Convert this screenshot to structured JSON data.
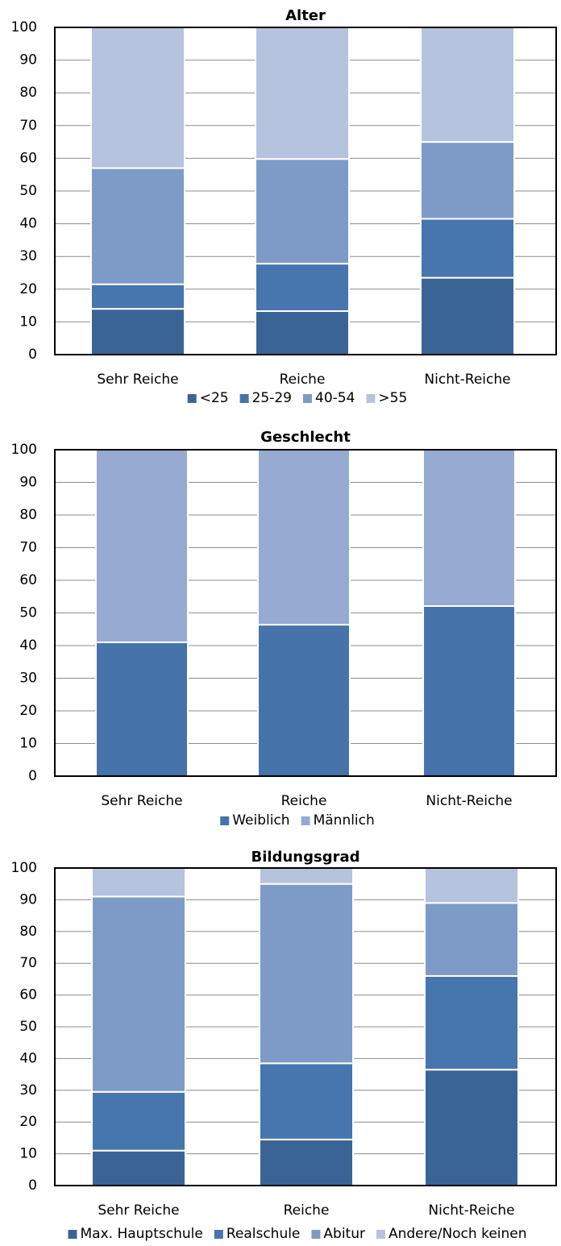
{
  "chart_data": [
    {
      "type": "bar",
      "stacked": true,
      "title": "Alter",
      "categories": [
        "Sehr Reiche",
        "Reiche",
        "Nicht-Reiche"
      ],
      "series": [
        {
          "name": "<25",
          "color": "#3b6496",
          "values": [
            14,
            13.3,
            23.5
          ]
        },
        {
          "name": "25-29",
          "color": "#4775ad",
          "values": [
            7.5,
            14.5,
            18
          ]
        },
        {
          "name": "40-54",
          "color": "#7e9bc8",
          "values": [
            35.5,
            32,
            23.5
          ]
        },
        {
          "name": ">55",
          "color": "#b5c3de",
          "values": [
            43,
            40.2,
            35
          ]
        }
      ],
      "ylim": [
        0,
        100
      ],
      "yticks": [
        0,
        10,
        20,
        30,
        40,
        50,
        60,
        70,
        80,
        90,
        100
      ],
      "grid": true
    },
    {
      "type": "bar",
      "stacked": true,
      "title": "Geschlecht",
      "categories": [
        "Sehr Reiche",
        "Reiche",
        "Nicht-Reiche"
      ],
      "series": [
        {
          "name": "Weiblich",
          "color": "#4674aa",
          "values": [
            41,
            46.4,
            52.1
          ]
        },
        {
          "name": "Männlich",
          "color": "#97aad2",
          "values": [
            59,
            53.6,
            47.9
          ]
        }
      ],
      "ylim": [
        0,
        100
      ],
      "yticks": [
        0,
        10,
        20,
        30,
        40,
        50,
        60,
        70,
        80,
        90,
        100
      ],
      "grid": true
    },
    {
      "type": "bar",
      "stacked": true,
      "title": "Bildungsgrad",
      "categories": [
        "Sehr Reiche",
        "Reiche",
        "Nicht-Reiche"
      ],
      "series": [
        {
          "name": "Max. Hauptschule",
          "color": "#3b6496",
          "values": [
            11,
            14.5,
            36.5
          ]
        },
        {
          "name": "Realschule",
          "color": "#4775ad",
          "values": [
            18.5,
            24,
            29.5
          ]
        },
        {
          "name": "Abitur",
          "color": "#7e9bc8",
          "values": [
            61.5,
            56.5,
            23
          ]
        },
        {
          "name": "Andere/Noch keinen",
          "color": "#b5c3de",
          "values": [
            9,
            5,
            11
          ]
        }
      ],
      "ylim": [
        0,
        100
      ],
      "yticks": [
        0,
        10,
        20,
        30,
        40,
        50,
        60,
        70,
        80,
        90,
        100
      ],
      "grid": true
    }
  ]
}
